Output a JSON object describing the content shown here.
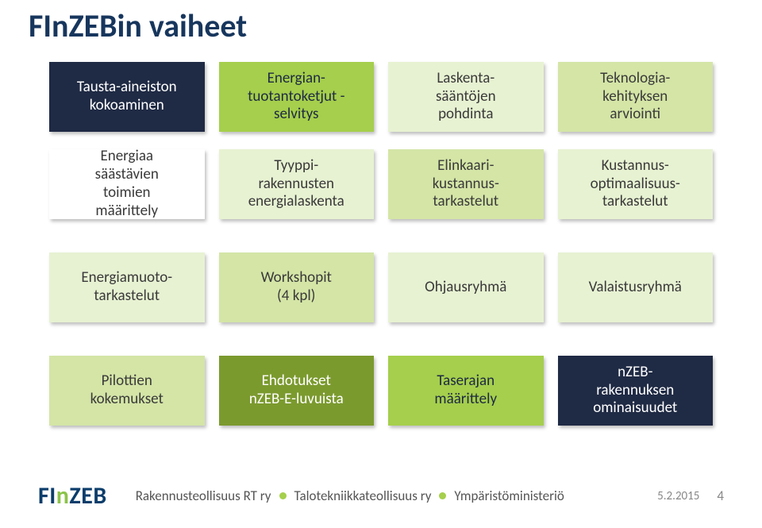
{
  "title": "FInZEBin vaiheet",
  "rows": [
    {
      "gap": "normal",
      "cells": [
        {
          "text": "Tausta-aineiston\nkokoaminen",
          "cls": "navy"
        },
        {
          "text": "Energian-\ntuotantoketjut -\nselvitys",
          "cls": "lime"
        },
        {
          "text": "Laskenta-\nsääntöjen\npohdinta",
          "cls": "paleGreen"
        },
        {
          "text": "Teknologia-\nkehityksen\narviointi",
          "cls": "lightGreen"
        }
      ]
    },
    {
      "gap": "extra",
      "cells": [
        {
          "text": "Energiaa\nsäästävien\ntoimien\nmäärittely",
          "cls": "white"
        },
        {
          "text": "Tyyppi-\nrakennusten\nenergialaskenta",
          "cls": "paleGreen"
        },
        {
          "text": "Elinkaari-\nkustannus-\ntarkastelut",
          "cls": "lightGreen"
        },
        {
          "text": "Kustannus-\noptimaalisuus-\ntarkastelut",
          "cls": "paleGreen"
        }
      ]
    },
    {
      "gap": "extra",
      "cells": [
        {
          "text": "Energiamuoto-\ntarkastelut",
          "cls": "paleGreen"
        },
        {
          "text": "Workshopit\n(4 kpl)",
          "cls": "lightGreen"
        },
        {
          "text": "Ohjausryhmä",
          "cls": "paleGreen"
        },
        {
          "text": "Valaistusryhmä",
          "cls": "paleGreen"
        }
      ]
    },
    {
      "gap": "normal",
      "cells": [
        {
          "text": "Pilottien\nkokemukset",
          "cls": "lightGreen"
        },
        {
          "text": "Ehdotukset\nnZEB-E-luvuista",
          "cls": "darkGreen"
        },
        {
          "text": "Taserajan\nmäärittely",
          "cls": "lime"
        },
        {
          "text": "nZEB-\nrakennuksen\nominaisuudet",
          "cls": "navy"
        }
      ]
    }
  ],
  "logo": {
    "fi": "FI",
    "n": "n",
    "zeb": "ZEB"
  },
  "orgs": [
    "Rakennusteollisuus RT ry",
    "Talotekniikkateollisuus ry",
    "Ympäristöministeriö"
  ],
  "date": "5.2.2015",
  "page": "4",
  "colors": {
    "navy": "#1f2a44",
    "lime": "#a5cf4c",
    "paleGreen": "#e7f2d2",
    "lightGreen": "#d4e5a6",
    "white": "#ffffff",
    "darkGreen": "#7b9a2e",
    "titleColor": "#17365d"
  }
}
